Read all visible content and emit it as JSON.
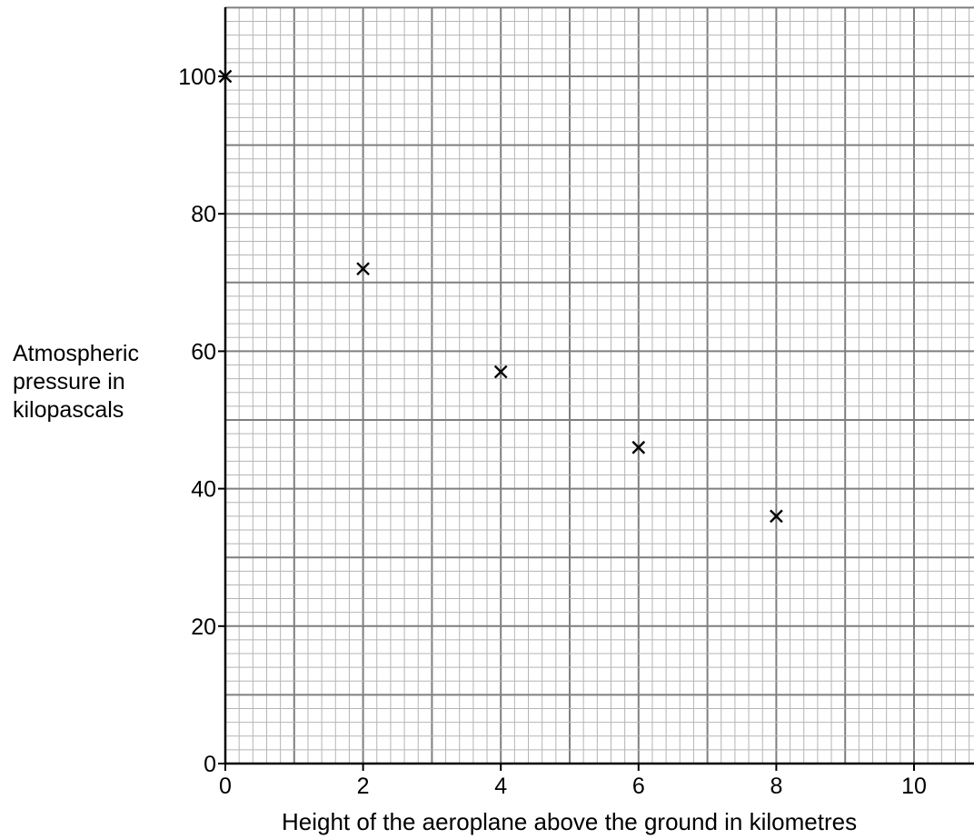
{
  "chart_data": {
    "type": "scatter",
    "title": "",
    "xlabel": "Height of the aeroplane above the ground in kilometres",
    "ylabel_lines": [
      "Atmospheric",
      "pressure in",
      "kilopascals"
    ],
    "xlim": [
      0,
      10.8
    ],
    "ylim": [
      0,
      110
    ],
    "x_ticks": [
      "0",
      "2",
      "4",
      "6",
      "8",
      "10"
    ],
    "y_ticks": [
      "0",
      "20",
      "40",
      "60",
      "80",
      "100"
    ],
    "x_tick_values": [
      0,
      2,
      4,
      6,
      8,
      10
    ],
    "y_tick_values": [
      0,
      20,
      40,
      60,
      80,
      100
    ],
    "grid": true,
    "marker": "cross",
    "points": [
      {
        "x": 0,
        "y": 100
      },
      {
        "x": 2,
        "y": 72
      },
      {
        "x": 4,
        "y": 57
      },
      {
        "x": 6,
        "y": 46
      },
      {
        "x": 8,
        "y": 36
      }
    ]
  },
  "colors": {
    "minor_grid": "#b5b5b5",
    "major_grid": "#7f7f7f",
    "axis": "#000000",
    "marker": "#000000"
  }
}
